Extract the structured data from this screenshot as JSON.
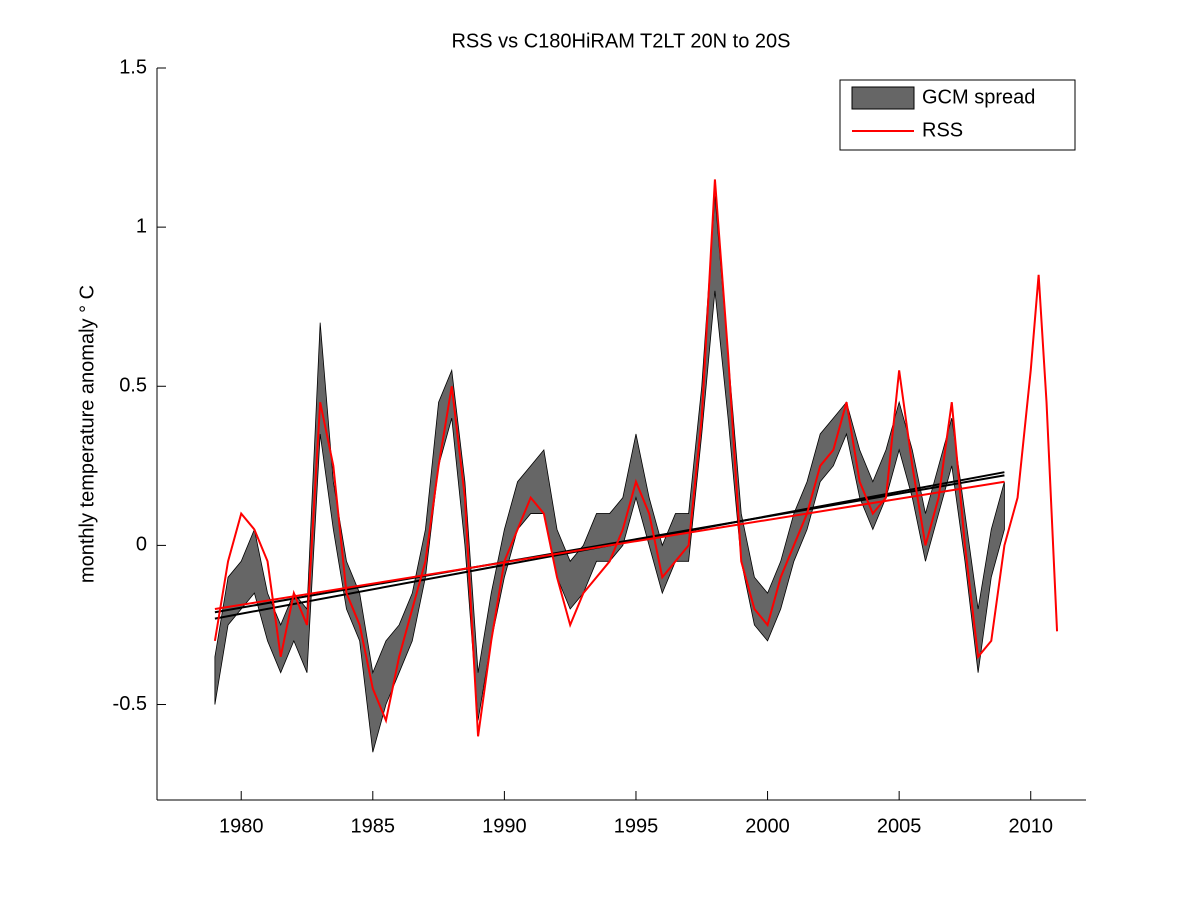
{
  "chart_data": {
    "type": "line",
    "title": "RSS vs C180HiRAM T2LT 20N to 20S",
    "ylabel": "monthly temperature anomaly  ° C",
    "xlim": [
      1976.8,
      2012.1
    ],
    "ylim": [
      -0.8,
      1.5
    ],
    "xticks": [
      1980,
      1985,
      1990,
      1995,
      2000,
      2005,
      2010
    ],
    "yticks": [
      -0.5,
      0,
      0.5,
      1,
      1.5
    ],
    "legend": "upper right",
    "series": [
      {
        "name": "GCM spread",
        "color": "#666666",
        "x": [
          1979,
          1979.5,
          1980,
          1980.5,
          1981,
          1981.5,
          1982,
          1982.5,
          1983,
          1983.5,
          1984,
          1984.5,
          1985,
          1985.5,
          1986,
          1986.5,
          1987,
          1987.5,
          1988,
          1988.5,
          1989,
          1989.5,
          1990,
          1990.5,
          1991,
          1991.5,
          1992,
          1992.5,
          1993,
          1993.5,
          1994,
          1994.5,
          1995,
          1995.5,
          1996,
          1996.5,
          1997,
          1997.5,
          1998,
          1998.5,
          1999,
          1999.5,
          2000,
          2000.5,
          2001,
          2001.5,
          2002,
          2002.5,
          2003,
          2003.5,
          2004,
          2004.5,
          2005,
          2005.5,
          2006,
          2006.5,
          2007,
          2007.5,
          2008,
          2008.5,
          2009
        ],
        "lower": [
          -0.5,
          -0.25,
          -0.2,
          -0.15,
          -0.3,
          -0.4,
          -0.3,
          -0.4,
          0.35,
          0.05,
          -0.2,
          -0.3,
          -0.65,
          -0.5,
          -0.4,
          -0.3,
          -0.1,
          0.25,
          0.4,
          0,
          -0.55,
          -0.3,
          -0.1,
          0.05,
          0.1,
          0.1,
          -0.1,
          -0.2,
          -0.15,
          -0.05,
          -0.05,
          0,
          0.15,
          0,
          -0.15,
          -0.05,
          -0.05,
          0.35,
          0.8,
          0.4,
          -0.05,
          -0.25,
          -0.3,
          -0.2,
          -0.05,
          0.05,
          0.2,
          0.25,
          0.35,
          0.15,
          0.05,
          0.15,
          0.3,
          0.15,
          -0.05,
          0.1,
          0.25,
          -0.05,
          -0.4,
          -0.1,
          0.05
        ],
        "upper": [
          -0.35,
          -0.1,
          -0.05,
          0.05,
          -0.15,
          -0.25,
          -0.15,
          -0.2,
          0.7,
          0.2,
          -0.05,
          -0.15,
          -0.4,
          -0.3,
          -0.25,
          -0.15,
          0.05,
          0.45,
          0.55,
          0.2,
          -0.4,
          -0.15,
          0.05,
          0.2,
          0.25,
          0.3,
          0.05,
          -0.05,
          0,
          0.1,
          0.1,
          0.15,
          0.35,
          0.15,
          0,
          0.1,
          0.1,
          0.5,
          1.1,
          0.6,
          0.1,
          -0.1,
          -0.15,
          -0.05,
          0.1,
          0.2,
          0.35,
          0.4,
          0.45,
          0.3,
          0.2,
          0.3,
          0.45,
          0.3,
          0.1,
          0.25,
          0.4,
          0.1,
          -0.2,
          0.05,
          0.2
        ]
      },
      {
        "name": "RSS",
        "color": "#ff0000",
        "x": [
          1979,
          1979.5,
          1980,
          1980.5,
          1981,
          1981.5,
          1982,
          1982.5,
          1983,
          1983.5,
          1984,
          1984.5,
          1985,
          1985.5,
          1986,
          1986.5,
          1987,
          1987.5,
          1988,
          1988.5,
          1989,
          1989.5,
          1990,
          1990.5,
          1991,
          1991.5,
          1992,
          1992.5,
          1993,
          1993.5,
          1994,
          1994.5,
          1995,
          1995.5,
          1996,
          1996.5,
          1997,
          1997.5,
          1998,
          1998.5,
          1999,
          1999.5,
          2000,
          2000.5,
          2001,
          2001.5,
          2002,
          2002.5,
          2003,
          2003.5,
          2004,
          2004.5,
          2005,
          2005.5,
          2006,
          2006.5,
          2007,
          2007.5,
          2008,
          2008.5,
          2009,
          2009.5,
          2010,
          2010.3,
          2010.6,
          2011
        ],
        "values": [
          -0.3,
          -0.05,
          0.1,
          0.05,
          -0.05,
          -0.35,
          -0.15,
          -0.25,
          0.45,
          0.25,
          -0.15,
          -0.25,
          -0.45,
          -0.55,
          -0.35,
          -0.2,
          -0.05,
          0.25,
          0.5,
          0.15,
          -0.6,
          -0.3,
          -0.05,
          0.05,
          0.15,
          0.1,
          -0.1,
          -0.25,
          -0.15,
          -0.1,
          -0.05,
          0.05,
          0.2,
          0.1,
          -0.1,
          -0.05,
          0,
          0.4,
          1.15,
          0.6,
          -0.05,
          -0.2,
          -0.25,
          -0.1,
          0,
          0.1,
          0.25,
          0.3,
          0.45,
          0.2,
          0.1,
          0.15,
          0.55,
          0.25,
          0,
          0.15,
          0.45,
          0,
          -0.35,
          -0.3,
          0,
          0.15,
          0.55,
          0.85,
          0.45,
          -0.27
        ]
      }
    ],
    "trends": [
      {
        "color": "#000000",
        "x": [
          1979,
          2009
        ],
        "values": [
          -0.23,
          0.23
        ]
      },
      {
        "color": "#000000",
        "x": [
          1979,
          2009
        ],
        "values": [
          -0.21,
          0.22
        ]
      },
      {
        "color": "#ff0000",
        "x": [
          1979,
          2009
        ],
        "values": [
          -0.2,
          0.2
        ]
      }
    ]
  }
}
